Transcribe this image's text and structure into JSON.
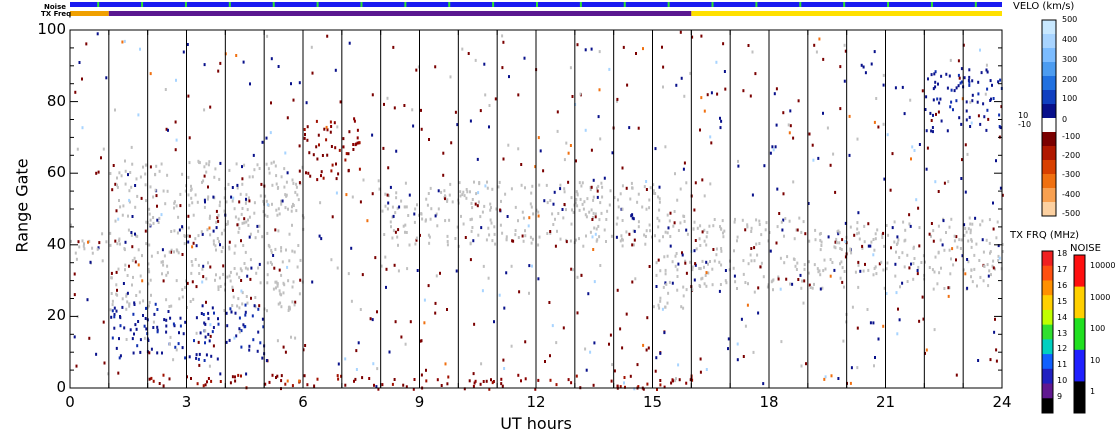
{
  "chart_data": {
    "type": "heatmap",
    "xlabel": "UT hours",
    "ylabel": "Range Gate",
    "xlim": [
      0,
      24
    ],
    "ylim": [
      0,
      100
    ],
    "x_ticks": [
      "0",
      "3",
      "6",
      "9",
      "12",
      "15",
      "18",
      "21",
      "24"
    ],
    "y_ticks": [
      "0",
      "20",
      "40",
      "60",
      "80",
      "100"
    ],
    "hour_lines": [
      1,
      2,
      3,
      4,
      5,
      6,
      7,
      8,
      9,
      10,
      11,
      12,
      13,
      14,
      15,
      16,
      17,
      18,
      19,
      20,
      21,
      22,
      23
    ],
    "top_bars": {
      "noise_label": "Noise",
      "txfreq_label": "TX Freq",
      "noise_color": "#1a1af0",
      "txfreq_segments": [
        {
          "from": 0,
          "to": 1,
          "color": "#f0a000"
        },
        {
          "from": 1,
          "to": 16,
          "color": "#5a1890"
        },
        {
          "from": 16,
          "to": 24,
          "color": "#ffe000"
        }
      ]
    },
    "ground_scatter_color": "#c0c0c0",
    "features": [
      {
        "kind": "ground scatter",
        "from": 0,
        "to": 1,
        "gate_low": 34,
        "gate_high": 42
      },
      {
        "kind": "ground scatter",
        "from": 1,
        "to": 6,
        "gate_low": 22,
        "gate_high": 64
      },
      {
        "kind": "ground scatter",
        "from": 8,
        "to": 16,
        "gate_low": 40,
        "gate_high": 58
      },
      {
        "kind": "ground scatter",
        "from": 15,
        "to": 16,
        "gate_low": 22,
        "gate_high": 40
      },
      {
        "kind": "ground scatter",
        "from": 16,
        "to": 24,
        "gate_low": 28,
        "gate_high": 48
      },
      {
        "kind": "negative velocity",
        "from": 2,
        "to": 16,
        "gate_low": 0,
        "gate_high": 4
      },
      {
        "kind": "negative velocity",
        "from": 6,
        "to": 7.5,
        "gate_low": 58,
        "gate_high": 76
      },
      {
        "kind": "positive velocity",
        "from": 1,
        "to": 5,
        "gate_low": 8,
        "gate_high": 24
      },
      {
        "kind": "positive velocity",
        "from": 22,
        "to": 24,
        "gate_low": 72,
        "gate_high": 90
      }
    ],
    "colorbars": [
      {
        "title": "VELO (km/s)",
        "labels": [
          "500",
          "400",
          "300",
          "200",
          "100",
          "10",
          "0",
          "-10",
          "-100",
          "-200",
          "-300",
          "-400",
          "-500"
        ],
        "colors": [
          "#c8e8ff",
          "#a8d4ff",
          "#7cbcff",
          "#4c9cf0",
          "#2070e0",
          "#1040c0",
          "#08108a",
          "#ffffff",
          "#7a0000",
          "#b01800",
          "#d84000",
          "#f07010",
          "#f8a050",
          "#fcd0a0"
        ]
      },
      {
        "title": "TX FRQ (MHz)",
        "labels": [
          "18",
          "17",
          "16",
          "15",
          "14",
          "13",
          "12",
          "11",
          "10",
          "9"
        ],
        "colors": [
          "#f02020",
          "#ff5010",
          "#ff9000",
          "#ffd000",
          "#c0ff00",
          "#30e030",
          "#00d0c0",
          "#1060ff",
          "#2020c0",
          "#601890",
          "#000000"
        ]
      },
      {
        "title": "NOISE",
        "labels": [
          "10000",
          "1000",
          "100",
          "10",
          "1"
        ],
        "colors": [
          "#ff1010",
          "#ffd000",
          "#20e020",
          "#2020ff",
          "#000000"
        ]
      }
    ]
  }
}
